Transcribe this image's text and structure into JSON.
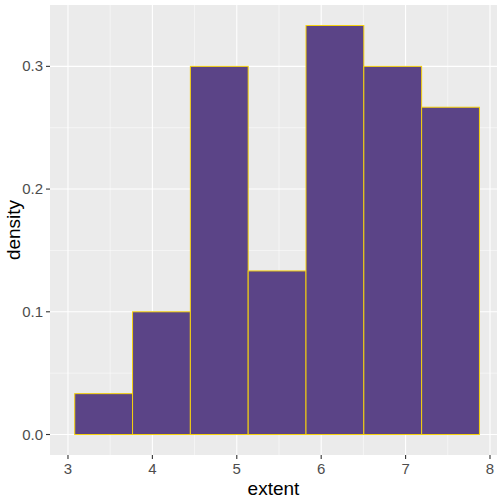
{
  "chart_data": {
    "type": "histogram",
    "x_label": "extent",
    "y_label": "density",
    "bins": [
      3.08,
      3.765,
      4.45,
      5.135,
      5.82,
      6.505,
      7.19,
      7.875
    ],
    "values": [
      0.0333,
      0.1,
      0.3,
      0.1333,
      0.3333,
      0.3,
      0.2667
    ],
    "color": "#5b4487",
    "xlim": [
      2.787,
      8.083
    ],
    "ylim": [
      -0.0167,
      0.35
    ],
    "xticks": [
      3,
      4,
      5,
      6,
      7,
      8
    ],
    "yticks": [
      {
        "value": 0,
        "label": "0.0"
      },
      0.1,
      0.2,
      0.3
    ],
    "grid": true
  }
}
